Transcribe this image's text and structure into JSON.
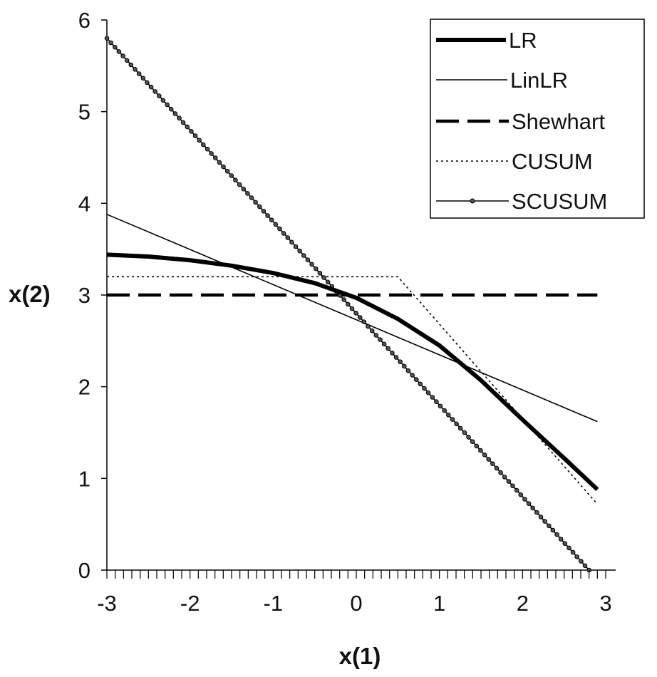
{
  "chart_data": {
    "type": "line",
    "title": "",
    "xlabel": "x(1)",
    "ylabel": "x(2)",
    "xlim": [
      -3,
      3
    ],
    "ylim": [
      0,
      6
    ],
    "x_ticks": [
      "-3",
      "-2",
      "-1",
      "0",
      "1",
      "2",
      "3"
    ],
    "y_ticks": [
      "0",
      "1",
      "2",
      "3",
      "4",
      "5",
      "6"
    ],
    "grid": false,
    "legend_position": "top-right",
    "series": [
      {
        "name": "LR",
        "style": "thick-solid",
        "x": [
          -3,
          -2.5,
          -2,
          -1.5,
          -1,
          -0.5,
          0,
          0.5,
          1,
          1.5,
          2,
          2.5,
          2.9
        ],
        "y": [
          3.44,
          3.42,
          3.38,
          3.32,
          3.24,
          3.13,
          2.97,
          2.74,
          2.45,
          2.07,
          1.64,
          1.22,
          0.88
        ]
      },
      {
        "name": "LinLR",
        "style": "thin-solid",
        "x": [
          -3,
          2.9
        ],
        "y": [
          3.88,
          1.62
        ]
      },
      {
        "name": "Shewhart",
        "style": "dashed",
        "x": [
          -3,
          2.9
        ],
        "y": [
          3.0,
          3.0
        ]
      },
      {
        "name": "CUSUM",
        "style": "dotted",
        "x": [
          -3,
          0.5,
          2.9
        ],
        "y": [
          3.2,
          3.2,
          0.72
        ]
      },
      {
        "name": "SCUSUM",
        "style": "line-with-markers",
        "x": [
          -3,
          2.8
        ],
        "y": [
          5.8,
          0.0
        ]
      }
    ]
  }
}
